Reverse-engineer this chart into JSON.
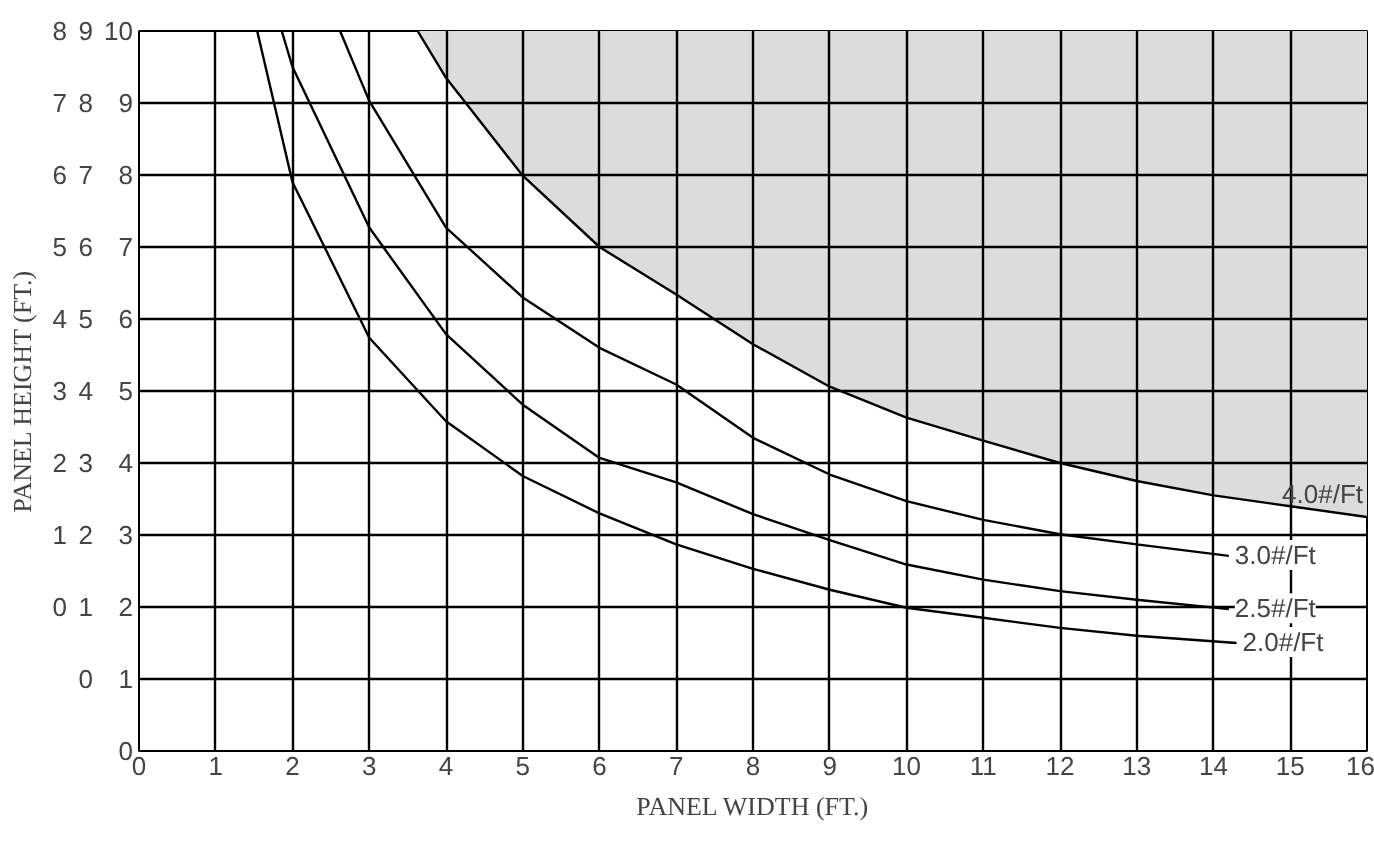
{
  "chart_data": {
    "type": "line",
    "xlabel": "PANEL WIDTH (FT.)",
    "y3label": "PANEL HEIGHT (FT.)",
    "xlim": [
      0,
      16
    ],
    "ylim": [
      0,
      10
    ],
    "y2lim": [
      -1,
      9
    ],
    "y3lim": [
      -2,
      8
    ],
    "xticks": [
      0,
      1,
      2,
      3,
      4,
      5,
      6,
      7,
      8,
      9,
      10,
      11,
      12,
      13,
      14,
      15,
      16
    ],
    "yticks": [
      0,
      1,
      2,
      3,
      4,
      5,
      6,
      7,
      8,
      9,
      10
    ],
    "y2ticks": [
      0,
      1,
      2,
      3,
      4,
      5,
      6,
      7,
      8,
      9
    ],
    "y3ticks": [
      0,
      1,
      2,
      3,
      4,
      5,
      6,
      7,
      8
    ],
    "grid": true,
    "marker": "none",
    "line_style": "solid",
    "series": [
      {
        "name": "4.0#/Ft",
        "color": "#000000",
        "x": [
          3.63,
          4,
          5,
          6,
          7,
          8,
          9,
          10,
          11,
          12,
          13,
          14,
          15,
          16
        ],
        "values": [
          10,
          9.35,
          7.99,
          7.0,
          6.34,
          5.65,
          5.06,
          4.63,
          4.31,
          4.0,
          3.75,
          3.55,
          3.4,
          3.25
        ],
        "lower": [
          10,
          9.35,
          7.99,
          7.0,
          6.34,
          5.65,
          5.06,
          4.63,
          4.31,
          4.0,
          3.75,
          3.55,
          3.4,
          3.25
        ],
        "upper": [
          10,
          10,
          10,
          10,
          10,
          10,
          10,
          10,
          10,
          10,
          10,
          10,
          10,
          10
        ]
      },
      {
        "name": "3.0#/Ft",
        "color": "#000000",
        "x": [
          2.62,
          3,
          4,
          5,
          6,
          7,
          8,
          9,
          10,
          11,
          12,
          13,
          14.2
        ],
        "values": [
          10,
          9.03,
          7.27,
          6.3,
          5.6,
          5.09,
          4.35,
          3.84,
          3.47,
          3.21,
          3.01,
          2.87,
          2.71
        ]
      },
      {
        "name": "2.5#/Ft",
        "color": "#000000",
        "x": [
          1.86,
          2,
          3,
          4,
          5,
          6,
          7,
          8,
          9,
          10,
          11,
          12,
          13,
          14.2
        ],
        "values": [
          10,
          9.5,
          7.27,
          5.79,
          4.81,
          4.07,
          3.73,
          3.29,
          2.93,
          2.59,
          2.38,
          2.22,
          2.1,
          1.97
        ]
      },
      {
        "name": "2.0#/Ft",
        "color": "#000000",
        "x": [
          1.54,
          2,
          3,
          4,
          5,
          6,
          7,
          8,
          9,
          10,
          11,
          12,
          13,
          14.3
        ],
        "values": [
          10,
          7.9,
          5.74,
          4.58,
          3.82,
          3.3,
          2.87,
          2.53,
          2.24,
          1.99,
          1.85,
          1.71,
          1.6,
          1.5
        ]
      }
    ]
  }
}
